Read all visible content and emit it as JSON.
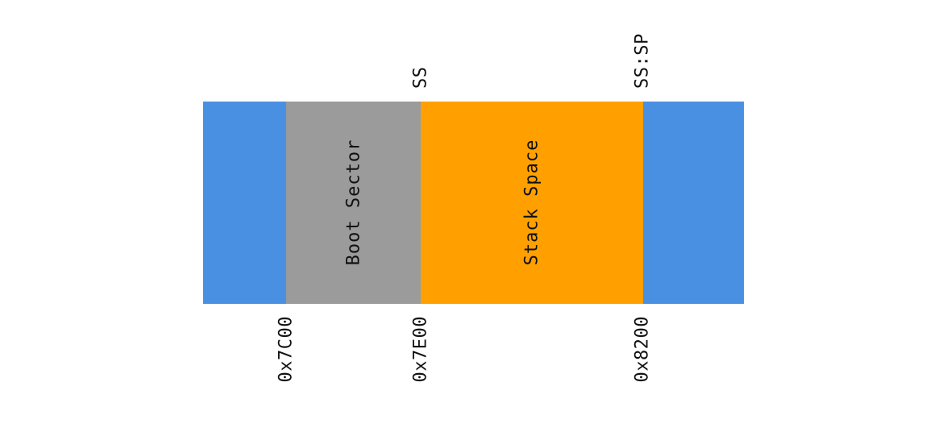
{
  "diagram": {
    "segments": [
      {
        "id": "left-memory",
        "label": "",
        "color": "#4A90E2"
      },
      {
        "id": "boot-sector",
        "label": "Boot Sector",
        "color": "#9B9B9B"
      },
      {
        "id": "stack-space",
        "label": "Stack Space",
        "color": "#FFA000"
      },
      {
        "id": "right-memory",
        "label": "",
        "color": "#4A90E2"
      }
    ],
    "top_labels": [
      {
        "id": "ss",
        "text": "SS"
      },
      {
        "id": "ss-sp",
        "text": "SS:SP"
      }
    ],
    "bottom_labels": [
      {
        "id": "addr-7c00",
        "text": "0x7C00"
      },
      {
        "id": "addr-7e00",
        "text": "0x7E00"
      },
      {
        "id": "addr-8200",
        "text": "0x8200"
      }
    ]
  }
}
